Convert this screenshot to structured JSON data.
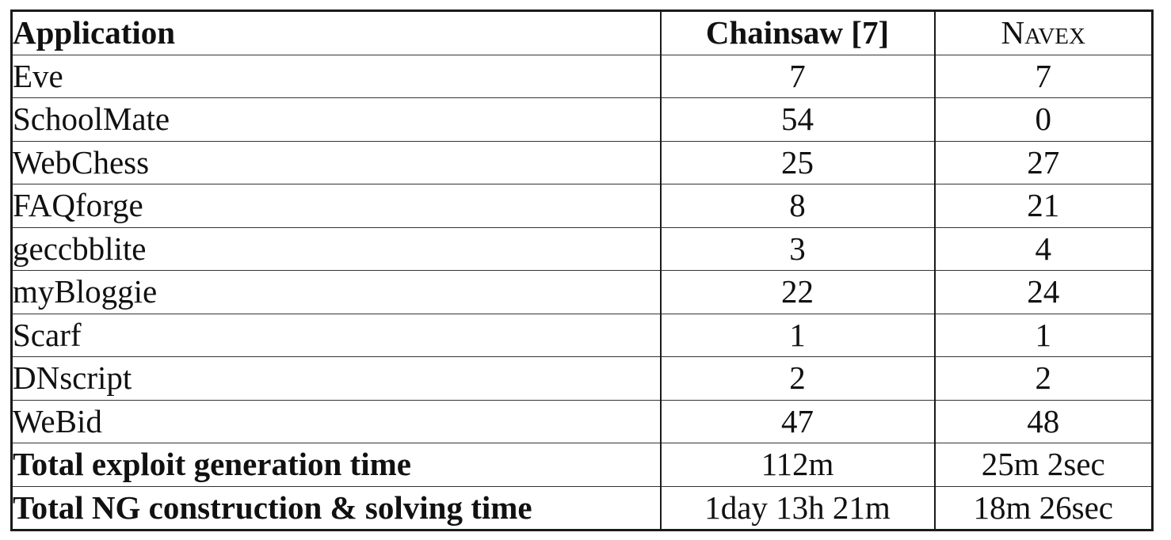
{
  "table": {
    "headers": {
      "application": "Application",
      "chainsaw": "Chainsaw [7]",
      "navex": "Navex"
    },
    "rows": [
      {
        "application": "Eve",
        "chainsaw": "7",
        "navex": "7"
      },
      {
        "application": "SchoolMate",
        "chainsaw": "54",
        "navex": "0"
      },
      {
        "application": "WebChess",
        "chainsaw": "25",
        "navex": "27"
      },
      {
        "application": "FAQforge",
        "chainsaw": "8",
        "navex": "21"
      },
      {
        "application": "geccbblite",
        "chainsaw": "3",
        "navex": "4"
      },
      {
        "application": "myBloggie",
        "chainsaw": "22",
        "navex": "24"
      },
      {
        "application": "Scarf",
        "chainsaw": "1",
        "navex": "1"
      },
      {
        "application": "DNscript",
        "chainsaw": "2",
        "navex": "2"
      },
      {
        "application": "WeBid",
        "chainsaw": "47",
        "navex": "48"
      }
    ],
    "totals": [
      {
        "label": "Total exploit generation time",
        "chainsaw": "112m",
        "navex": "25m 2sec"
      },
      {
        "label": "Total NG construction & solving time",
        "chainsaw": "1day 13h 21m",
        "navex": "18m 26sec"
      }
    ]
  }
}
